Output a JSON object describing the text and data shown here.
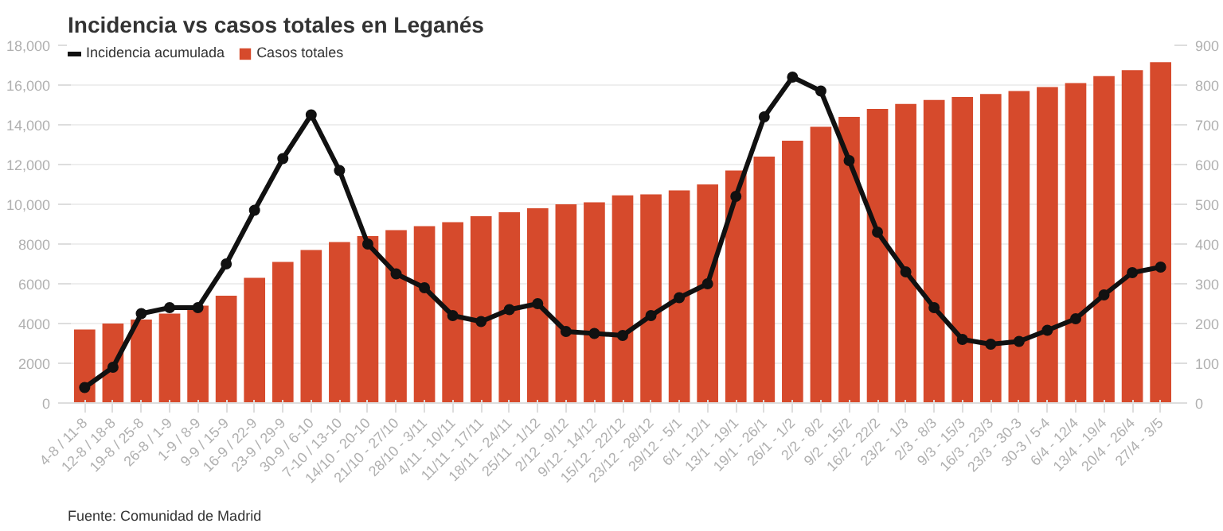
{
  "chart_data": {
    "type": "bar",
    "title": "Incidencia vs casos totales en Leganés",
    "categories": [
      "4-8 / 11-8",
      "12-8 / 18-8",
      "19-8 / 25-8",
      "26-8 / 1-9",
      "1-9 / 8-9",
      "9-9 / 15-9",
      "16-9 / 22-9",
      "23-9 / 29-9",
      "30-9 / 6-10",
      "7-10 / 13-10",
      "14/10 - 20-10",
      "21/10 - 27/10",
      "28/10 - 3/11",
      "4/11 - 10/11",
      "11/11 - 17/11",
      "18/11 - 24/11",
      "25/11 - 1/12",
      "2/12 - 9/12",
      "9/12 - 14/12",
      "15/12 - 22/12",
      "23/12 - 28/12",
      "29/12 - 5/1",
      "6/1 - 12/1",
      "13/1 - 19/1",
      "19/1 - 26/1",
      "26/1 - 1/2",
      "2/2 - 8/2",
      "9/2 - 15/2",
      "16/2 - 22/2",
      "23/2 - 1/3",
      "2/3 - 8/3",
      "9/3 - 15/3",
      "16/3 - 23/3",
      "23/3 - 30-3",
      "30-3 / 5-4",
      "6/4 - 12/4",
      "13/4 - 19/4",
      "20/4 - 26/4",
      "27/4 - 3/5"
    ],
    "series": [
      {
        "name": "Incidencia acumulada",
        "type": "line",
        "axis": "y2",
        "color": "#111111",
        "values": [
          39,
          90,
          225,
          240,
          240,
          350,
          485,
          615,
          725,
          585,
          400,
          325,
          290,
          220,
          205,
          235,
          250,
          180,
          175,
          170,
          220,
          265,
          300,
          520,
          720,
          820,
          785,
          610,
          430,
          330,
          240,
          160,
          148,
          155,
          183,
          212,
          272,
          328,
          342
        ]
      },
      {
        "name": "Casos totales",
        "color": "#d64a2c",
        "values": [
          3700,
          4000,
          4200,
          4500,
          4900,
          5400,
          6300,
          7100,
          7700,
          8100,
          8400,
          8700,
          8900,
          9100,
          9400,
          9600,
          9800,
          10000,
          10100,
          10450,
          10500,
          10700,
          11000,
          11700,
          12400,
          13200,
          13900,
          14400,
          14800,
          15050,
          15250,
          15400,
          15550,
          15700,
          15900,
          16100,
          16450,
          16750,
          17150
        ]
      }
    ],
    "ylim": [
      0,
      18000
    ],
    "yticks": [
      0,
      2000,
      4000,
      6000,
      8000,
      {
        "value": 10000,
        "label": "10,000"
      },
      {
        "value": 12000,
        "label": "12,000"
      },
      {
        "value": 14000,
        "label": "14,000"
      },
      {
        "value": 16000,
        "label": "16,000"
      },
      {
        "value": 18000,
        "label": "18,000"
      }
    ],
    "y2lim": [
      0,
      900
    ],
    "y2ticks": [
      0,
      100,
      200,
      300,
      400,
      500,
      600,
      700,
      800,
      900
    ],
    "grid": "y",
    "legend": "top left",
    "marker": "circle",
    "annotations": [
      "Fuente: Comunidad de Madrid"
    ]
  }
}
